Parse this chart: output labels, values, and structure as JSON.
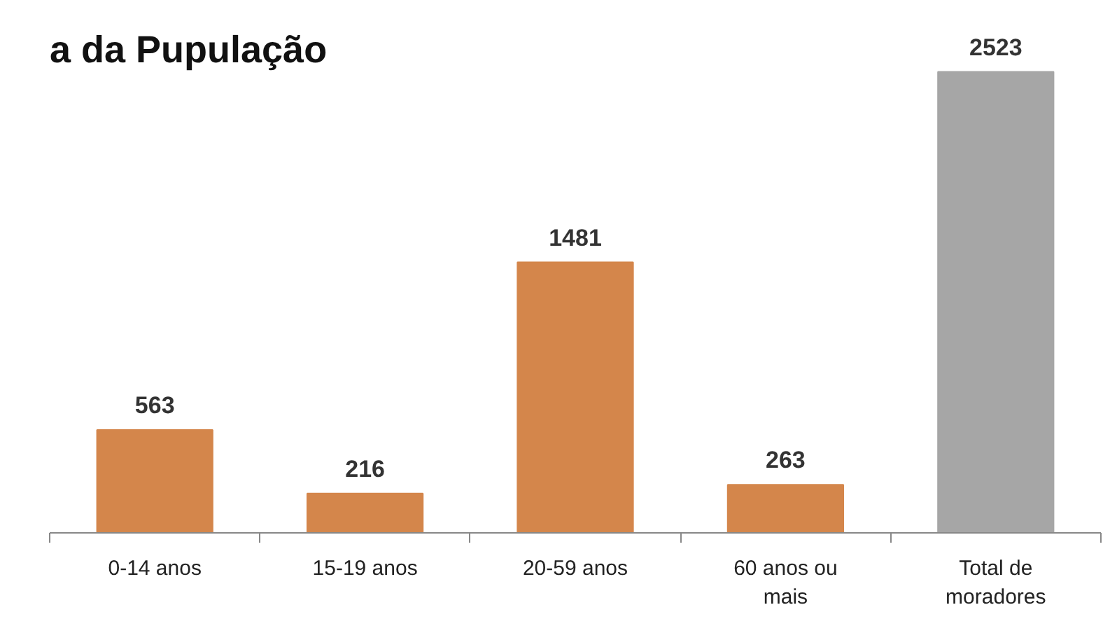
{
  "chart_data": {
    "type": "bar",
    "title": "a da Pupulação",
    "categories": [
      "0-14 anos",
      "15-19 anos",
      "20-59 anos",
      "60 anos ou mais",
      "Total de moradores"
    ],
    "values": [
      563,
      216,
      1481,
      263,
      2523
    ],
    "colors": [
      "#d4864b",
      "#d4864b",
      "#d4864b",
      "#d4864b",
      "#a6a6a6"
    ],
    "data_labels": true
  }
}
